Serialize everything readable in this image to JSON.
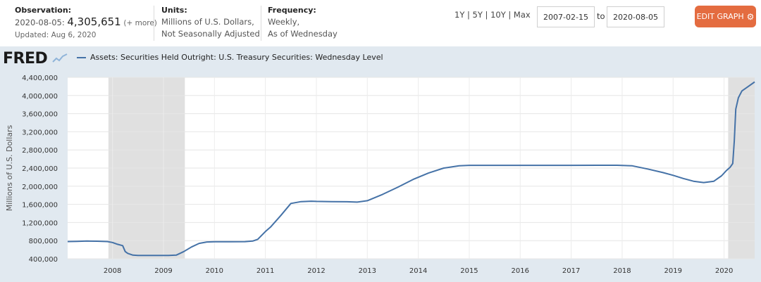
{
  "observation": {
    "label": "Observation:",
    "date": "2020-08-05:",
    "value": "4,305,651",
    "more": "(+ more)",
    "updated": "Updated: Aug 6, 2020"
  },
  "units": {
    "label": "Units:",
    "line1": "Millions of U.S. Dollars,",
    "line2": "Not Seasonally Adjusted"
  },
  "frequency": {
    "label": "Frequency:",
    "line1": "Weekly,",
    "line2": "As of Wednesday"
  },
  "ranges": [
    "1Y",
    "5Y",
    "10Y",
    "Max"
  ],
  "date_from": "2007-02-15",
  "to_label": "to",
  "date_to": "2020-08-05",
  "edit_button": "EDIT GRAPH",
  "logo": "FRED",
  "colors": {
    "line": "#4572a7",
    "panel_bg": "#e1e9f0",
    "recession": "#e0e0e0",
    "edit_button": "#e46c40"
  },
  "chart_data": {
    "type": "line",
    "ylabel": "Millions of U.S. Dollars",
    "ylim": [
      400000,
      4400000
    ],
    "xlim": [
      2007.12,
      2020.6
    ],
    "yticks": [
      400000,
      800000,
      1200000,
      1600000,
      2000000,
      2400000,
      2800000,
      3200000,
      3600000,
      4000000,
      4400000
    ],
    "ytick_labels": [
      "400,000",
      "800,000",
      "1,200,000",
      "1,600,000",
      "2,000,000",
      "2,400,000",
      "2,800,000",
      "3,200,000",
      "3,600,000",
      "4,000,000",
      "4,400,000"
    ],
    "xticks": [
      2008,
      2009,
      2010,
      2011,
      2012,
      2013,
      2014,
      2015,
      2016,
      2017,
      2018,
      2019,
      2020
    ],
    "xtick_labels": [
      "2008",
      "2009",
      "2010",
      "2011",
      "2012",
      "2013",
      "2014",
      "2015",
      "2016",
      "2017",
      "2018",
      "2019",
      "2020"
    ],
    "recessions": [
      [
        2007.92,
        2009.42
      ],
      [
        2020.08,
        2020.6
      ]
    ],
    "grid": true,
    "legend_position": "top-left",
    "series": [
      {
        "name": "Assets: Securities Held Outright: U.S. Treasury Securities: Wednesday Level",
        "x": [
          2007.12,
          2007.3,
          2007.5,
          2007.7,
          2007.9,
          2008.0,
          2008.1,
          2008.2,
          2008.25,
          2008.3,
          2008.4,
          2008.5,
          2008.7,
          2008.9,
          2009.1,
          2009.25,
          2009.4,
          2009.55,
          2009.7,
          2009.85,
          2010.0,
          2010.3,
          2010.6,
          2010.75,
          2010.85,
          2011.0,
          2011.1,
          2011.3,
          2011.5,
          2011.7,
          2011.9,
          2012.0,
          2012.3,
          2012.6,
          2012.8,
          2013.0,
          2013.3,
          2013.6,
          2013.9,
          2014.2,
          2014.5,
          2014.8,
          2015.0,
          2015.5,
          2016.0,
          2016.5,
          2017.0,
          2017.5,
          2017.9,
          2018.2,
          2018.5,
          2018.8,
          2019.0,
          2019.2,
          2019.4,
          2019.6,
          2019.8,
          2019.95,
          2020.05,
          2020.12,
          2020.17,
          2020.2,
          2020.23,
          2020.28,
          2020.35,
          2020.45,
          2020.6
        ],
        "y": [
          780000,
          785000,
          790000,
          788000,
          780000,
          760000,
          720000,
          690000,
          560000,
          520000,
          480000,
          475000,
          475000,
          475000,
          475000,
          480000,
          560000,
          660000,
          740000,
          770000,
          776000,
          775000,
          778000,
          790000,
          830000,
          1000000,
          1100000,
          1350000,
          1620000,
          1660000,
          1670000,
          1665000,
          1660000,
          1658000,
          1650000,
          1680000,
          1820000,
          1980000,
          2150000,
          2290000,
          2400000,
          2450000,
          2460000,
          2460000,
          2460000,
          2460000,
          2460000,
          2462000,
          2462000,
          2450000,
          2380000,
          2300000,
          2240000,
          2170000,
          2110000,
          2080000,
          2110000,
          2230000,
          2350000,
          2420000,
          2500000,
          3000000,
          3700000,
          3950000,
          4100000,
          4180000,
          4300000
        ]
      }
    ]
  }
}
